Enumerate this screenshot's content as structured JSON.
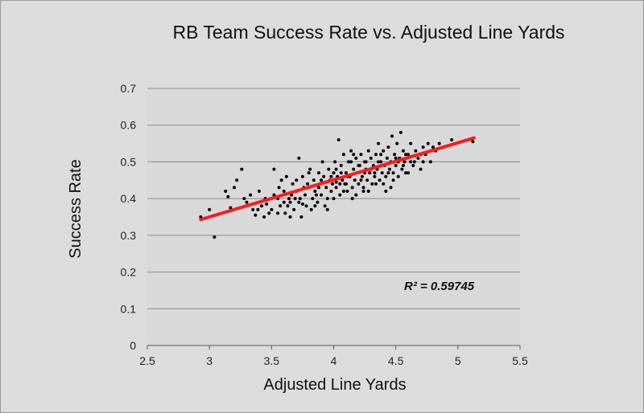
{
  "chart_data": {
    "type": "scatter",
    "title": "RB Team Success Rate vs. Adjusted Line Yards",
    "xlabel": "Adjusted Line Yards",
    "ylabel": "Success Rate",
    "xlim": [
      2.5,
      5.5
    ],
    "ylim": [
      0,
      0.7
    ],
    "xticks": [
      "2.5",
      "3",
      "3.5",
      "4",
      "4.5",
      "5",
      "5.5"
    ],
    "yticks": [
      "0",
      "0.1",
      "0.2",
      "0.3",
      "0.4",
      "0.5",
      "0.6",
      "0.7"
    ],
    "grid": "horizontal",
    "legend": "none",
    "annotation": "R² = 0.59745",
    "colors": {
      "points": "#000000",
      "trendline": "#ff1a1a",
      "plot_background": "#d9d9d9",
      "page_background": "#dcdcdc"
    },
    "trendline": {
      "x": [
        2.93,
        5.13
      ],
      "y": [
        0.343,
        0.565
      ]
    },
    "points": [
      [
        2.93,
        0.35
      ],
      [
        3.0,
        0.37
      ],
      [
        3.04,
        0.295
      ],
      [
        3.13,
        0.42
      ],
      [
        3.15,
        0.405
      ],
      [
        3.17,
        0.375
      ],
      [
        3.2,
        0.43
      ],
      [
        3.22,
        0.45
      ],
      [
        3.26,
        0.48
      ],
      [
        3.28,
        0.4
      ],
      [
        3.3,
        0.39
      ],
      [
        3.33,
        0.41
      ],
      [
        3.35,
        0.37
      ],
      [
        3.37,
        0.355
      ],
      [
        3.4,
        0.42
      ],
      [
        3.42,
        0.38
      ],
      [
        3.44,
        0.35
      ],
      [
        3.45,
        0.4
      ],
      [
        3.48,
        0.36
      ],
      [
        3.5,
        0.37
      ],
      [
        3.52,
        0.48
      ],
      [
        3.52,
        0.41
      ],
      [
        3.55,
        0.4
      ],
      [
        3.56,
        0.43
      ],
      [
        3.57,
        0.38
      ],
      [
        3.6,
        0.42
      ],
      [
        3.61,
        0.36
      ],
      [
        3.62,
        0.46
      ],
      [
        3.64,
        0.4
      ],
      [
        3.65,
        0.39
      ],
      [
        3.67,
        0.44
      ],
      [
        3.68,
        0.37
      ],
      [
        3.7,
        0.42
      ],
      [
        3.72,
        0.51
      ],
      [
        3.73,
        0.4
      ],
      [
        3.74,
        0.35
      ],
      [
        3.75,
        0.46
      ],
      [
        3.77,
        0.41
      ],
      [
        3.78,
        0.38
      ],
      [
        3.79,
        0.44
      ],
      [
        3.8,
        0.43
      ],
      [
        3.81,
        0.48
      ],
      [
        3.83,
        0.4
      ],
      [
        3.84,
        0.45
      ],
      [
        3.85,
        0.42
      ],
      [
        3.87,
        0.39
      ],
      [
        3.88,
        0.47
      ],
      [
        3.89,
        0.44
      ],
      [
        3.9,
        0.41
      ],
      [
        3.91,
        0.5
      ],
      [
        3.92,
        0.46
      ],
      [
        3.94,
        0.43
      ],
      [
        3.95,
        0.4
      ],
      [
        3.96,
        0.48
      ],
      [
        3.97,
        0.45
      ],
      [
        3.98,
        0.42
      ],
      [
        3.99,
        0.44
      ],
      [
        4.0,
        0.47
      ],
      [
        4.01,
        0.5
      ],
      [
        4.02,
        0.43
      ],
      [
        4.03,
        0.46
      ],
      [
        4.04,
        0.56
      ],
      [
        4.05,
        0.41
      ],
      [
        4.06,
        0.49
      ],
      [
        4.07,
        0.45
      ],
      [
        4.08,
        0.52
      ],
      [
        4.09,
        0.44
      ],
      [
        4.1,
        0.47
      ],
      [
        4.11,
        0.42
      ],
      [
        4.12,
        0.5
      ],
      [
        4.13,
        0.46
      ],
      [
        4.14,
        0.53
      ],
      [
        4.15,
        0.43
      ],
      [
        4.16,
        0.48
      ],
      [
        4.17,
        0.45
      ],
      [
        4.18,
        0.51
      ],
      [
        4.19,
        0.47
      ],
      [
        4.2,
        0.44
      ],
      [
        4.21,
        0.49
      ],
      [
        4.22,
        0.52
      ],
      [
        4.23,
        0.46
      ],
      [
        4.24,
        0.43
      ],
      [
        4.25,
        0.5
      ],
      [
        4.26,
        0.48
      ],
      [
        4.27,
        0.45
      ],
      [
        4.28,
        0.53
      ],
      [
        4.29,
        0.47
      ],
      [
        4.3,
        0.51
      ],
      [
        4.31,
        0.44
      ],
      [
        4.32,
        0.49
      ],
      [
        4.33,
        0.46
      ],
      [
        4.34,
        0.52
      ],
      [
        4.35,
        0.48
      ],
      [
        4.36,
        0.55
      ],
      [
        4.37,
        0.45
      ],
      [
        4.38,
        0.5
      ],
      [
        4.39,
        0.47
      ],
      [
        4.4,
        0.53
      ],
      [
        4.41,
        0.49
      ],
      [
        4.42,
        0.46
      ],
      [
        4.43,
        0.51
      ],
      [
        4.44,
        0.54
      ],
      [
        4.45,
        0.48
      ],
      [
        4.46,
        0.5
      ],
      [
        4.47,
        0.57
      ],
      [
        4.48,
        0.47
      ],
      [
        4.49,
        0.52
      ],
      [
        4.5,
        0.49
      ],
      [
        4.51,
        0.55
      ],
      [
        4.52,
        0.46
      ],
      [
        4.53,
        0.51
      ],
      [
        4.54,
        0.58
      ],
      [
        4.55,
        0.48
      ],
      [
        4.56,
        0.53
      ],
      [
        4.57,
        0.5
      ],
      [
        4.58,
        0.47
      ],
      [
        4.6,
        0.52
      ],
      [
        4.62,
        0.55
      ],
      [
        4.64,
        0.49
      ],
      [
        4.66,
        0.53
      ],
      [
        4.68,
        0.51
      ],
      [
        4.7,
        0.48
      ],
      [
        4.72,
        0.54
      ],
      [
        4.74,
        0.52
      ],
      [
        4.76,
        0.55
      ],
      [
        4.78,
        0.5
      ],
      [
        4.8,
        0.54
      ],
      [
        4.82,
        0.53
      ],
      [
        4.85,
        0.55
      ],
      [
        4.95,
        0.56
      ],
      [
        5.12,
        0.555
      ],
      [
        3.58,
        0.45
      ],
      [
        3.63,
        0.38
      ],
      [
        3.69,
        0.4
      ],
      [
        3.76,
        0.43
      ],
      [
        3.82,
        0.37
      ],
      [
        3.86,
        0.41
      ],
      [
        3.93,
        0.38
      ],
      [
        4.0,
        0.4
      ],
      [
        4.05,
        0.44
      ],
      [
        4.11,
        0.46
      ],
      [
        4.18,
        0.41
      ],
      [
        4.22,
        0.45
      ],
      [
        4.28,
        0.42
      ],
      [
        4.33,
        0.47
      ],
      [
        4.4,
        0.44
      ],
      [
        4.46,
        0.43
      ],
      [
        4.52,
        0.5
      ],
      [
        4.6,
        0.47
      ],
      [
        3.7,
        0.45
      ],
      [
        3.8,
        0.47
      ],
      [
        3.9,
        0.45
      ],
      [
        4.02,
        0.48
      ],
      [
        4.14,
        0.5
      ],
      [
        4.25,
        0.47
      ],
      [
        4.36,
        0.5
      ],
      [
        4.42,
        0.42
      ],
      [
        4.48,
        0.45
      ],
      [
        3.55,
        0.36
      ],
      [
        3.65,
        0.35
      ],
      [
        3.75,
        0.385
      ],
      [
        3.85,
        0.38
      ],
      [
        3.95,
        0.37
      ],
      [
        4.08,
        0.42
      ],
      [
        4.15,
        0.4
      ],
      [
        4.24,
        0.42
      ],
      [
        4.3,
        0.48
      ],
      [
        4.5,
        0.51
      ],
      [
        4.58,
        0.52
      ],
      [
        4.65,
        0.5
      ],
      [
        4.7,
        0.52
      ],
      [
        3.6,
        0.39
      ],
      [
        3.72,
        0.39
      ],
      [
        3.88,
        0.43
      ],
      [
        3.98,
        0.46
      ],
      [
        4.1,
        0.44
      ],
      [
        4.2,
        0.49
      ],
      [
        4.34,
        0.44
      ],
      [
        4.44,
        0.47
      ],
      [
        3.5,
        0.4
      ],
      [
        3.46,
        0.385
      ],
      [
        3.39,
        0.37
      ],
      [
        3.66,
        0.41
      ],
      [
        4.06,
        0.47
      ],
      [
        4.16,
        0.52
      ],
      [
        4.26,
        0.5
      ],
      [
        4.38,
        0.52
      ],
      [
        4.56,
        0.49
      ],
      [
        4.62,
        0.5
      ],
      [
        4.72,
        0.5
      ],
      [
        4.02,
        0.445
      ]
    ]
  }
}
